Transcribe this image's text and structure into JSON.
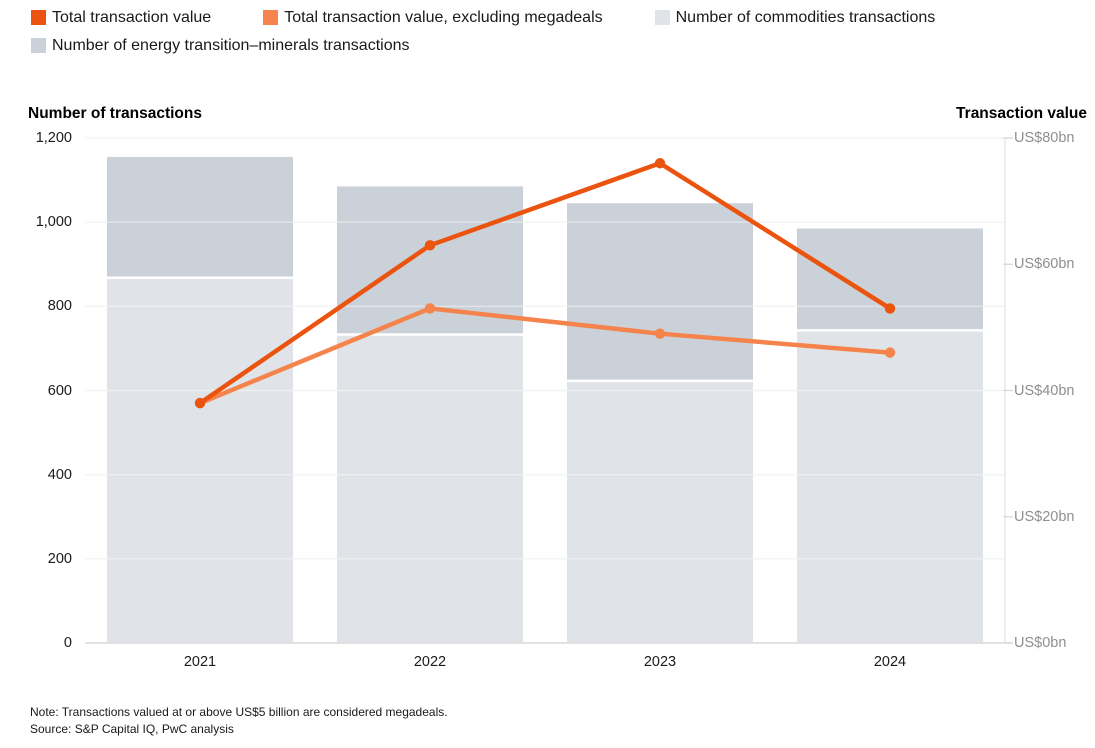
{
  "legend": {
    "items": [
      {
        "label": "Total transaction value",
        "color": "#EB540E"
      },
      {
        "label": "Total transaction value, excluding megadeals",
        "color": "#F5834C"
      },
      {
        "label": "Number of commodities transactions",
        "color": "#E0E4E8"
      },
      {
        "label": "Number of energy transition–minerals transactions",
        "color": "#CBD1D8"
      }
    ]
  },
  "axes": {
    "left_title": "Number of transactions",
    "right_title": "Transaction value",
    "left_tick_labels": [
      "0",
      "200",
      "400",
      "600",
      "800",
      "1,000",
      "1,200"
    ],
    "right_tick_labels": [
      "US$0bn",
      "US$20bn",
      "US$40bn",
      "US$60bn",
      "US$80bn"
    ]
  },
  "chart_data": {
    "type": "combo: stacked bar + line",
    "categories": [
      "2021",
      "2022",
      "2023",
      "2024"
    ],
    "bar_series": [
      {
        "name": "Number of commodities transactions",
        "axis": "left",
        "color": "#E0E4E8",
        "values": [
          865,
          730,
          620,
          740
        ]
      },
      {
        "name": "Number of energy transition–minerals transactions",
        "axis": "left",
        "color": "#CBD1D8",
        "values": [
          290,
          355,
          425,
          245
        ]
      }
    ],
    "line_series": [
      {
        "name": "Total transaction value",
        "axis": "right",
        "color": "#EB540E",
        "values_usd_bn": [
          38,
          63,
          76,
          53
        ]
      },
      {
        "name": "Total transaction value, excluding megadeals",
        "axis": "right",
        "color": "#F5834C",
        "values_usd_bn": [
          38,
          53,
          49,
          46
        ]
      }
    ],
    "left_axis": {
      "label": "Number of transactions",
      "range": [
        0,
        1200
      ],
      "tick_step": 200
    },
    "right_axis": {
      "label": "Transaction value",
      "range": [
        0,
        80
      ],
      "tick_step": 20,
      "unit": "US$bn"
    },
    "grid": true,
    "legend_position": "top"
  },
  "footer": {
    "note": "Note: Transactions valued at or above US$5 billion are considered megadeals.",
    "source": "Source: S&P Capital IQ, PwC analysis"
  },
  "colors": {
    "grid": "#ECECEC",
    "baseline": "#D9D9D9",
    "right_axis_line": "#E4E4E4",
    "right_tick_text": "#8F8F8F",
    "text": "#1A1A1A"
  }
}
